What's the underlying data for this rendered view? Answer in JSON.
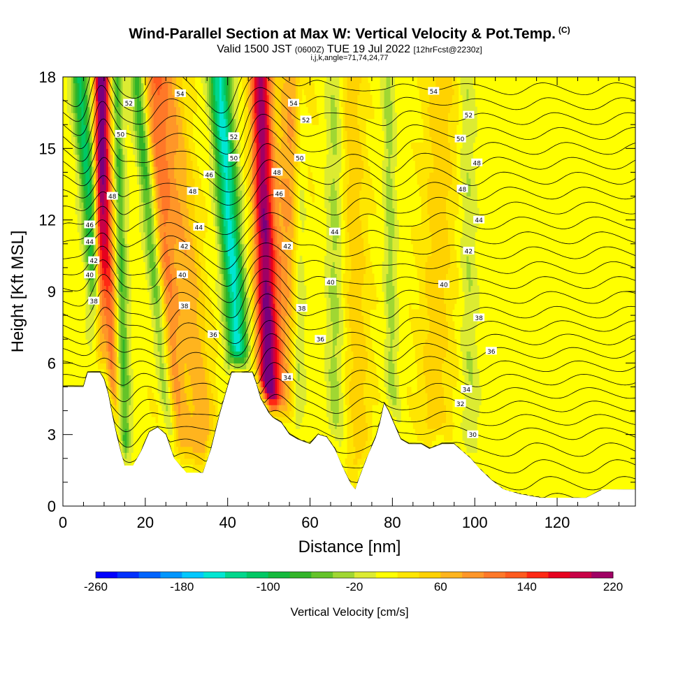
{
  "header": {
    "title": "Wind-Parallel Section at Max W: Vertical Velocity & Pot.Temp.",
    "title_mark": "(C)",
    "valid_prefix": "Valid 1500 JST",
    "valid_utc": "(0600Z)",
    "valid_date": "TUE 19 Jul 2022",
    "valid_fcst": "[12hrFcst@2230z]",
    "params": "i,j,k,angle=71,74,24,77"
  },
  "chart_data": {
    "type": "heatmap",
    "title": "Wind-Parallel Section at Max W: Vertical Velocity & Pot.Temp.",
    "xlabel": "Distance [nm]",
    "ylabel": "Height [Kft MSL]",
    "xlim": [
      0,
      139
    ],
    "ylim": [
      0,
      18
    ],
    "x_ticks": [
      0,
      20,
      40,
      60,
      80,
      100,
      120
    ],
    "y_ticks": [
      0,
      3,
      6,
      9,
      12,
      15,
      18
    ],
    "x_tick_labels": [
      "0",
      "20",
      "40",
      "60",
      "80",
      "100",
      "120"
    ],
    "y_tick_labels": [
      "0",
      "3",
      "6",
      "9",
      "12",
      "15",
      "18"
    ],
    "colorbar": {
      "title": "Vertical Velocity [cm/s]",
      "min": -260,
      "max": 220,
      "step": 20,
      "tick_values": [
        -260,
        -180,
        -100,
        -20,
        60,
        140,
        220
      ],
      "tick_labels": [
        "-260",
        "-180",
        "-100",
        "-20",
        "60",
        "140",
        "220"
      ],
      "colors": [
        "#0000ff",
        "#0030ff",
        "#0064ff",
        "#0096ff",
        "#00c8ff",
        "#00e6d2",
        "#00d78c",
        "#00c864",
        "#14b93c",
        "#32b428",
        "#64c328",
        "#a0d732",
        "#dceb32",
        "#ffff00",
        "#ffe600",
        "#ffd200",
        "#ffb41e",
        "#ff9628",
        "#ff7828",
        "#ff5a1e",
        "#ff2814",
        "#e6001e",
        "#c80046",
        "#a00064",
        "#78007d"
      ]
    },
    "terrain_kft": [
      [
        0,
        5.0
      ],
      [
        5,
        5.0
      ],
      [
        6,
        5.6
      ],
      [
        9,
        5.6
      ],
      [
        10,
        5.3
      ],
      [
        11,
        4.7
      ],
      [
        12,
        3.8
      ],
      [
        13,
        3.0
      ],
      [
        14,
        2.3
      ],
      [
        15,
        1.7
      ],
      [
        17,
        1.7
      ],
      [
        19,
        2.3
      ],
      [
        21,
        3.1
      ],
      [
        23,
        3.3
      ],
      [
        25,
        3.0
      ],
      [
        26,
        2.5
      ],
      [
        27,
        2.0
      ],
      [
        29,
        1.6
      ],
      [
        30,
        1.4
      ],
      [
        34,
        1.4
      ],
      [
        36,
        2.4
      ],
      [
        38,
        3.8
      ],
      [
        40,
        5.0
      ],
      [
        41,
        5.6
      ],
      [
        46,
        5.6
      ],
      [
        47,
        5.1
      ],
      [
        48,
        4.5
      ],
      [
        50,
        3.9
      ],
      [
        51,
        3.7
      ],
      [
        53,
        3.5
      ],
      [
        55,
        3.0
      ],
      [
        57,
        2.8
      ],
      [
        60,
        2.6
      ],
      [
        62,
        3.0
      ],
      [
        64,
        2.9
      ],
      [
        66,
        2.4
      ],
      [
        68,
        1.6
      ],
      [
        70,
        0.9
      ],
      [
        71,
        0.7
      ],
      [
        72,
        1.2
      ],
      [
        74,
        2.1
      ],
      [
        76,
        2.9
      ],
      [
        77,
        3.5
      ],
      [
        78,
        4.3
      ],
      [
        79,
        4.0
      ],
      [
        80,
        3.6
      ],
      [
        82,
        2.8
      ],
      [
        84,
        2.6
      ],
      [
        87,
        2.6
      ],
      [
        89,
        2.4
      ],
      [
        92,
        2.6
      ],
      [
        95,
        2.6
      ],
      [
        97,
        2.3
      ],
      [
        99,
        2.0
      ],
      [
        101,
        1.6
      ],
      [
        104,
        1.1
      ],
      [
        107,
        0.7
      ],
      [
        111,
        0.5
      ],
      [
        116,
        0.35
      ],
      [
        127,
        0.35
      ],
      [
        131,
        0.7
      ],
      [
        139,
        0.7
      ]
    ],
    "series": [
      {
        "name": "updraft",
        "base_x": 9,
        "top_x": 9,
        "width": 1.5,
        "amp": 150
      },
      {
        "name": "updraft",
        "base_x": 12,
        "top_x": 10,
        "width": 1.8,
        "amp": 120
      },
      {
        "name": "downdraft",
        "base_x": 11,
        "top_x": 4,
        "width": 2.0,
        "amp": -120
      },
      {
        "name": "downdraft",
        "base_x": 15,
        "top_x": 13,
        "width": 1.5,
        "amp": -80
      },
      {
        "name": "updraft",
        "base_x": 27,
        "top_x": 22,
        "width": 3.0,
        "amp": 90
      },
      {
        "name": "downdraft",
        "base_x": 26,
        "top_x": 18,
        "width": 1.8,
        "amp": -100
      },
      {
        "name": "updraft",
        "base_x": 34,
        "top_x": 26,
        "width": 3.5,
        "amp": 60
      },
      {
        "name": "downdraft",
        "base_x": 44,
        "top_x": 38,
        "width": 2.5,
        "amp": -160
      },
      {
        "name": "updraft",
        "base_x": 50,
        "top_x": 48,
        "width": 2.5,
        "amp": 200
      },
      {
        "name": "updraft",
        "base_x": 52,
        "top_x": 56,
        "width": 3.5,
        "amp": 70
      },
      {
        "name": "downdraft",
        "base_x": 57,
        "top_x": 58,
        "width": 1.5,
        "amp": -40
      },
      {
        "name": "downdraft",
        "base_x": 66,
        "top_x": 66,
        "width": 2.0,
        "amp": -40
      },
      {
        "name": "updraft",
        "base_x": 72,
        "top_x": 70,
        "width": 3.0,
        "amp": 40
      },
      {
        "name": "downdraft",
        "base_x": 80,
        "top_x": 79,
        "width": 1.5,
        "amp": -40
      },
      {
        "name": "updraft",
        "base_x": 90,
        "top_x": 92,
        "width": 4.0,
        "amp": 40
      },
      {
        "name": "downdraft",
        "base_x": 99,
        "top_x": 98,
        "width": 2.0,
        "amp": -30
      }
    ],
    "potential_temperature": {
      "min": 28,
      "max": 56,
      "step": 1,
      "labels": [
        {
          "text": "54",
          "x": 28.5,
          "y": 17.3
        },
        {
          "text": "52",
          "x": 16,
          "y": 16.9
        },
        {
          "text": "50",
          "x": 14,
          "y": 15.6
        },
        {
          "text": "48",
          "x": 12,
          "y": 13.0
        },
        {
          "text": "46",
          "x": 6.5,
          "y": 11.8
        },
        {
          "text": "44",
          "x": 6.5,
          "y": 11.1
        },
        {
          "text": "42",
          "x": 7.5,
          "y": 10.3
        },
        {
          "text": "40",
          "x": 6.5,
          "y": 9.7
        },
        {
          "text": "38",
          "x": 7.5,
          "y": 8.6
        },
        {
          "text": "48",
          "x": 31.5,
          "y": 13.2
        },
        {
          "text": "46",
          "x": 35.5,
          "y": 13.9
        },
        {
          "text": "44",
          "x": 33,
          "y": 11.7
        },
        {
          "text": "42",
          "x": 29.5,
          "y": 10.9
        },
        {
          "text": "40",
          "x": 29,
          "y": 9.7
        },
        {
          "text": "38",
          "x": 29.5,
          "y": 8.4
        },
        {
          "text": "36",
          "x": 36.5,
          "y": 7.2
        },
        {
          "text": "52",
          "x": 41.5,
          "y": 15.5
        },
        {
          "text": "50",
          "x": 41.5,
          "y": 14.6
        },
        {
          "text": "54",
          "x": 56,
          "y": 16.9
        },
        {
          "text": "52",
          "x": 59,
          "y": 16.2
        },
        {
          "text": "50",
          "x": 57.5,
          "y": 14.6
        },
        {
          "text": "48",
          "x": 52,
          "y": 14.0
        },
        {
          "text": "46",
          "x": 52.5,
          "y": 13.1
        },
        {
          "text": "42",
          "x": 54.5,
          "y": 10.9
        },
        {
          "text": "44",
          "x": 66,
          "y": 11.5
        },
        {
          "text": "40",
          "x": 65,
          "y": 9.4
        },
        {
          "text": "38",
          "x": 58,
          "y": 8.3
        },
        {
          "text": "36",
          "x": 62.5,
          "y": 7.0
        },
        {
          "text": "34",
          "x": 54.5,
          "y": 5.4
        },
        {
          "text": "54",
          "x": 90,
          "y": 17.4
        },
        {
          "text": "52",
          "x": 98.5,
          "y": 16.4
        },
        {
          "text": "50",
          "x": 96.5,
          "y": 15.4
        },
        {
          "text": "48",
          "x": 100.5,
          "y": 14.4
        },
        {
          "text": "48",
          "x": 97,
          "y": 13.3
        },
        {
          "text": "44",
          "x": 101,
          "y": 12.0
        },
        {
          "text": "42",
          "x": 98.5,
          "y": 10.7
        },
        {
          "text": "40",
          "x": 92.5,
          "y": 9.3
        },
        {
          "text": "38",
          "x": 101,
          "y": 7.9
        },
        {
          "text": "36",
          "x": 104,
          "y": 6.5
        },
        {
          "text": "34",
          "x": 98,
          "y": 4.9
        },
        {
          "text": "32",
          "x": 96.5,
          "y": 4.3
        },
        {
          "text": "30",
          "x": 99.5,
          "y": 3.0
        }
      ]
    },
    "legend": "colorbar-bottom",
    "grid": false
  }
}
